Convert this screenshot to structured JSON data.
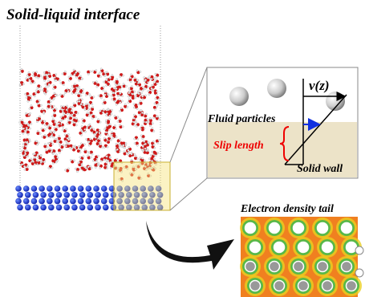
{
  "title": "Solid-liquid interface",
  "inset": {
    "velocity_label": "v(z)",
    "fluid_label": "Fluid particles",
    "slip_label": "Slip length",
    "wall_label": "Solid wall"
  },
  "density_map": {
    "title": "Electron density tail"
  }
}
